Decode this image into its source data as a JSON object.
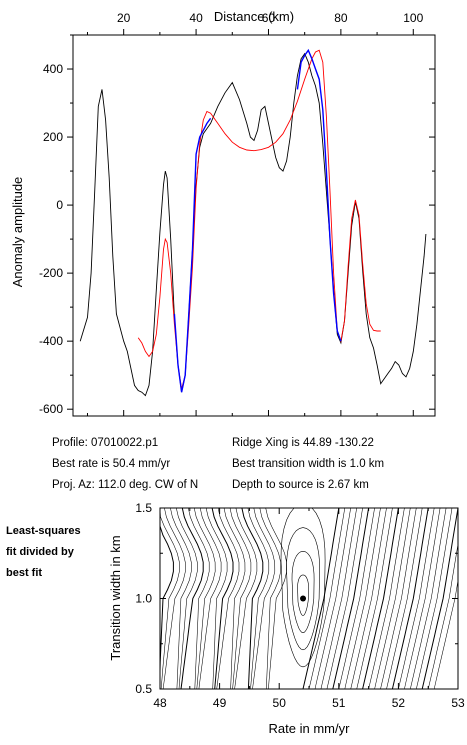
{
  "top_chart": {
    "xlabel": "Distance (km)",
    "ylabel": "Anomaly amplitude",
    "xlim": [
      6,
      106
    ],
    "ylim": [
      -620,
      500
    ],
    "x_ticks": [
      20,
      40,
      60,
      80,
      100
    ],
    "y_ticks": [
      400,
      200,
      0,
      -200,
      -400,
      -600
    ],
    "colors": {
      "observed": "#000000",
      "model": "#ff0000",
      "fit_window": "#0000ff"
    }
  },
  "info": {
    "profile": "Profile: 07010022.p1",
    "best_rate": "Best rate is 50.4 mm/yr",
    "proj_az": "Proj. Az: 112.0 deg. CW of N",
    "ridge_xing": "Ridge Xing is 44.89 -130.22",
    "transition": "Best transition width is 1.0 km",
    "depth": "Depth to source is   2.67 km"
  },
  "side_note": {
    "line1": "Least-squares",
    "line2": "fit divided by",
    "line3": "best fit"
  },
  "bottom_chart": {
    "xlabel": "Rate in mm/yr",
    "ylabel": "Transition width in km",
    "xlim": [
      48,
      53
    ],
    "ylim": [
      0.5,
      1.5
    ],
    "x_ticks": [
      "48",
      "49",
      "50",
      "51",
      "52",
      "53"
    ],
    "y_ticks": [
      "1.5",
      "1.0",
      "0.5"
    ],
    "best_fit_point": {
      "rate": 50.4,
      "width": 1.0
    }
  },
  "chart_data": [
    {
      "type": "line",
      "xlabel": "Distance (km)",
      "ylabel": "Anomaly amplitude",
      "xlim": [
        6,
        106
      ],
      "ylim": [
        -620,
        500
      ],
      "series": [
        {
          "color": "#000000",
          "points": [
            [
              8,
              -400
            ],
            [
              10,
              -330
            ],
            [
              11,
              -200
            ],
            [
              12,
              40
            ],
            [
              13,
              290
            ],
            [
              14,
              340
            ],
            [
              15,
              250
            ],
            [
              16,
              80
            ],
            [
              17,
              -150
            ],
            [
              18,
              -320
            ],
            [
              20,
              -400
            ],
            [
              21,
              -430
            ],
            [
              22,
              -480
            ],
            [
              23,
              -530
            ],
            [
              24,
              -545
            ],
            [
              25,
              -550
            ],
            [
              26,
              -560
            ],
            [
              27,
              -530
            ],
            [
              28,
              -430
            ],
            [
              29,
              -250
            ],
            [
              30,
              -80
            ],
            [
              31,
              60
            ],
            [
              31.5,
              100
            ],
            [
              32,
              80
            ],
            [
              33,
              -100
            ],
            [
              34,
              -330
            ],
            [
              35,
              -470
            ],
            [
              36,
              -550
            ],
            [
              37,
              -500
            ],
            [
              38,
              -320
            ],
            [
              39,
              -130
            ],
            [
              40,
              60
            ],
            [
              41,
              170
            ],
            [
              42,
              210
            ],
            [
              44,
              240
            ],
            [
              46,
              290
            ],
            [
              48,
              330
            ],
            [
              50,
              360
            ],
            [
              52,
              310
            ],
            [
              54,
              240
            ],
            [
              55,
              200
            ],
            [
              56,
              190
            ],
            [
              57,
              220
            ],
            [
              58,
              280
            ],
            [
              59,
              290
            ],
            [
              60,
              240
            ],
            [
              61,
              190
            ],
            [
              62,
              140
            ],
            [
              63,
              110
            ],
            [
              64,
              100
            ],
            [
              65,
              130
            ],
            [
              66,
              200
            ],
            [
              67,
              300
            ],
            [
              68,
              380
            ],
            [
              69,
              430
            ],
            [
              70,
              445
            ],
            [
              71,
              420
            ],
            [
              72,
              380
            ],
            [
              73,
              350
            ],
            [
              74,
              300
            ],
            [
              75,
              180
            ],
            [
              76,
              40
            ],
            [
              77,
              -100
            ],
            [
              78,
              -250
            ],
            [
              79,
              -380
            ],
            [
              80,
              -405
            ],
            [
              81,
              -340
            ],
            [
              82,
              -200
            ],
            [
              83,
              -60
            ],
            [
              84,
              10
            ],
            [
              85,
              -40
            ],
            [
              86,
              -190
            ],
            [
              87,
              -320
            ],
            [
              88,
              -390
            ],
            [
              89,
              -420
            ],
            [
              90,
              -470
            ],
            [
              91,
              -525
            ],
            [
              92,
              -510
            ],
            [
              93,
              -495
            ],
            [
              94,
              -480
            ],
            [
              95,
              -460
            ],
            [
              96,
              -470
            ],
            [
              97,
              -495
            ],
            [
              98,
              -505
            ],
            [
              99,
              -480
            ],
            [
              100,
              -430
            ],
            [
              101,
              -350
            ],
            [
              102,
              -250
            ],
            [
              103,
              -150
            ],
            [
              103.5,
              -85
            ]
          ]
        },
        {
          "color": "#ff0000",
          "points": [
            [
              24,
              -390
            ],
            [
              25,
              -405
            ],
            [
              26,
              -430
            ],
            [
              27,
              -445
            ],
            [
              28,
              -430
            ],
            [
              29,
              -380
            ],
            [
              30,
              -270
            ],
            [
              31,
              -130
            ],
            [
              31.5,
              -100
            ],
            [
              32,
              -110
            ],
            [
              33,
              -200
            ],
            [
              34,
              -350
            ],
            [
              35,
              -470
            ],
            [
              36,
              -540
            ],
            [
              37,
              -500
            ],
            [
              38,
              -350
            ],
            [
              39,
              -180
            ],
            [
              40,
              50
            ],
            [
              41,
              180
            ],
            [
              42,
              250
            ],
            [
              43,
              275
            ],
            [
              44,
              270
            ],
            [
              46,
              240
            ],
            [
              48,
              210
            ],
            [
              50,
              185
            ],
            [
              52,
              170
            ],
            [
              54,
              162
            ],
            [
              56,
              160
            ],
            [
              58,
              163
            ],
            [
              60,
              170
            ],
            [
              62,
              185
            ],
            [
              64,
              210
            ],
            [
              66,
              250
            ],
            [
              68,
              305
            ],
            [
              70,
              370
            ],
            [
              72,
              430
            ],
            [
              73,
              450
            ],
            [
              74,
              455
            ],
            [
              75,
              420
            ],
            [
              76,
              260
            ],
            [
              77,
              40
            ],
            [
              78,
              -200
            ],
            [
              79,
              -370
            ],
            [
              80,
              -400
            ],
            [
              81,
              -340
            ],
            [
              82,
              -180
            ],
            [
              83,
              -40
            ],
            [
              84,
              15
            ],
            [
              85,
              -30
            ],
            [
              86,
              -170
            ],
            [
              87,
              -290
            ],
            [
              88,
              -350
            ],
            [
              89,
              -368
            ],
            [
              90,
              -370
            ],
            [
              91,
              -370
            ]
          ]
        },
        {
          "color": "#0000ff",
          "points": [
            [
              34,
              -320
            ],
            [
              35,
              -470
            ],
            [
              36,
              -550
            ],
            [
              37,
              -500
            ],
            [
              38,
              -320
            ],
            [
              39,
              -130
            ],
            [
              40,
              150
            ],
            [
              41,
              200
            ],
            [
              42,
              220
            ],
            [
              43,
              240
            ],
            [
              44,
              255
            ],
            [
              68,
              340
            ],
            [
              69,
              420
            ],
            [
              70,
              440
            ],
            [
              71,
              455
            ],
            [
              72,
              430
            ],
            [
              73,
              400
            ],
            [
              74,
              370
            ],
            [
              75,
              280
            ],
            [
              76,
              100
            ],
            [
              77,
              -100
            ],
            [
              78,
              -260
            ],
            [
              79,
              -370
            ],
            [
              80,
              -400
            ]
          ]
        }
      ]
    },
    {
      "type": "contour",
      "xlabel": "Rate in mm/yr",
      "ylabel": "Transition width in km",
      "xlim": [
        48,
        53
      ],
      "ylim": [
        0.5,
        1.5
      ],
      "minimum": {
        "x": 50.4,
        "y": 1.0
      }
    }
  ]
}
